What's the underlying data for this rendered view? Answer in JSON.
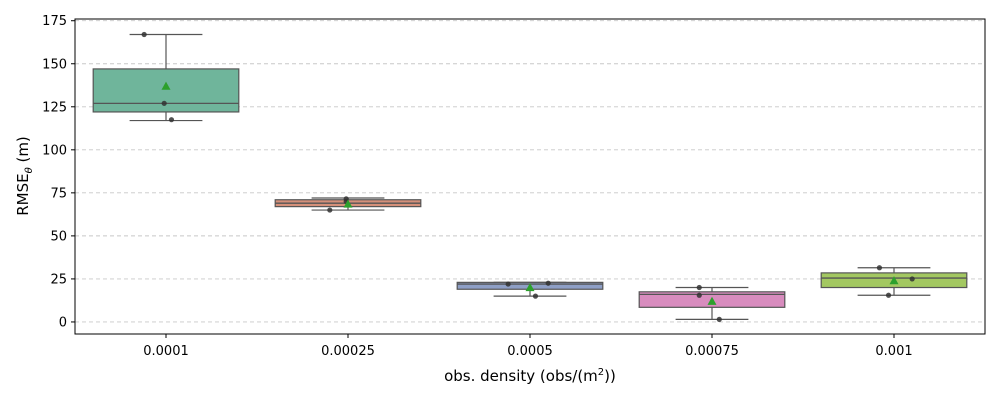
{
  "chart_data": {
    "type": "box",
    "xlabel": "obs. density (obs/(m",
    "xlabel_sup": "2",
    "xlabel_tail": "))",
    "ylabel": "RMSE",
    "ylabel_sub": "θ",
    "ylabel_tail": " (m)",
    "ylim": [
      -7,
      176
    ],
    "yticks": [
      0,
      25,
      50,
      75,
      100,
      125,
      150,
      175
    ],
    "ytick_labels": [
      "0",
      "25",
      "50",
      "75",
      "100",
      "125",
      "150",
      "175"
    ],
    "categories": [
      "0.0001",
      "0.00025",
      "0.0005",
      "0.00075",
      "0.001"
    ],
    "grid": "horizontal dashed",
    "boxes": [
      {
        "category": "0.0001",
        "color": "#6fb59b",
        "q1": 122,
        "median": 127,
        "q3": 147,
        "whisker_low": 117,
        "whisker_high": 167,
        "mean": 137,
        "points": [
          {
            "x_offset": -0.12,
            "y": 167
          },
          {
            "x_offset": -0.01,
            "y": 127
          },
          {
            "x_offset": 0.03,
            "y": 117.5
          }
        ]
      },
      {
        "category": "0.00025",
        "color": "#d5907a",
        "q1": 67,
        "median": 69,
        "q3": 71,
        "whisker_low": 65,
        "whisker_high": 72,
        "mean": 68.5,
        "points": [
          {
            "x_offset": -0.1,
            "y": 65
          },
          {
            "x_offset": -0.01,
            "y": 70
          },
          {
            "x_offset": -0.01,
            "y": 71.5
          }
        ]
      },
      {
        "category": "0.0005",
        "color": "#8e9fc6",
        "q1": 19,
        "median": 22,
        "q3": 23,
        "whisker_low": 15,
        "whisker_high": 23,
        "mean": 20,
        "points": [
          {
            "x_offset": -0.12,
            "y": 22
          },
          {
            "x_offset": 0.03,
            "y": 15
          },
          {
            "x_offset": 0.1,
            "y": 22.5
          }
        ]
      },
      {
        "category": "0.00075",
        "color": "#d88cbe",
        "q1": 8.5,
        "median": 16,
        "q3": 17.5,
        "whisker_low": 1.5,
        "whisker_high": 20,
        "mean": 12,
        "points": [
          {
            "x_offset": -0.07,
            "y": 20
          },
          {
            "x_offset": -0.07,
            "y": 15.5
          },
          {
            "x_offset": 0.04,
            "y": 1.5
          }
        ]
      },
      {
        "category": "0.001",
        "color": "#a3c861",
        "q1": 20,
        "median": 25.5,
        "q3": 28.5,
        "whisker_low": 15.5,
        "whisker_high": 31.5,
        "mean": 24,
        "points": [
          {
            "x_offset": -0.08,
            "y": 31.5
          },
          {
            "x_offset": -0.03,
            "y": 15.5
          },
          {
            "x_offset": 0.1,
            "y": 25
          }
        ]
      }
    ],
    "mean_marker_color": "#2ca02c",
    "point_color": "#333333"
  }
}
